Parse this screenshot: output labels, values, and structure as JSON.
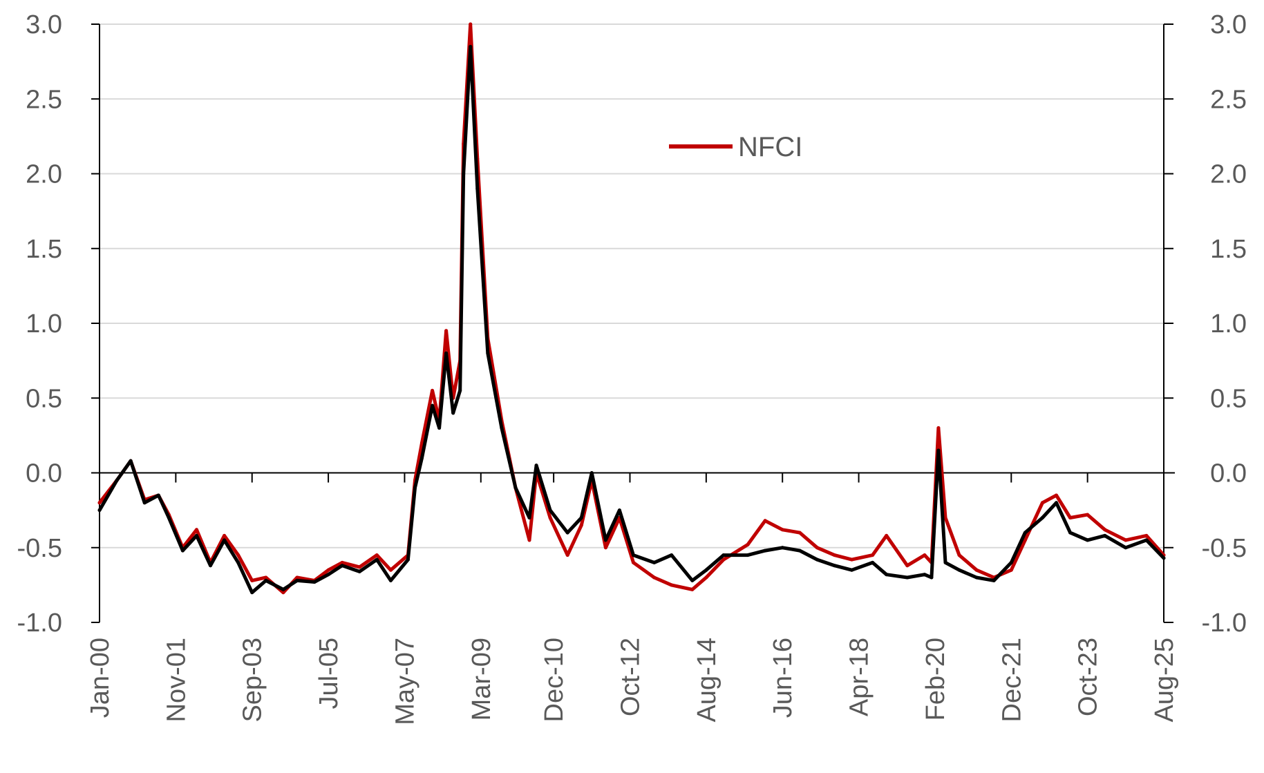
{
  "chart_data": {
    "type": "line",
    "title": "",
    "xlabel": "",
    "ylabel": "",
    "x_range": [
      "2000-01",
      "2025-08"
    ],
    "ylim": [
      -1.0,
      3.0
    ],
    "y_ticks": [
      "3.0",
      "2.5",
      "2.0",
      "1.5",
      "1.0",
      "0.5",
      "0.0",
      "-0.5",
      "-1.0"
    ],
    "y_tick_values": [
      3.0,
      2.5,
      2.0,
      1.5,
      1.0,
      0.5,
      0.0,
      -0.5,
      -1.0
    ],
    "secondary_y_ticks": [
      "3.0",
      "2.5",
      "2.0",
      "1.5",
      "1.0",
      "0.5",
      "0.0",
      "-0.5",
      "-1.0"
    ],
    "x_tick_labels": [
      "Jan-00",
      "Nov-01",
      "Sep-03",
      "Jul-05",
      "May-07",
      "Mar-09",
      "Dec-10",
      "Oct-12",
      "Aug-14",
      "Jun-16",
      "Apr-18",
      "Feb-20",
      "Dec-21",
      "Oct-23",
      "Aug-25"
    ],
    "x_tick_dates": [
      "2000-01",
      "2001-11",
      "2003-09",
      "2005-07",
      "2007-05",
      "2009-03",
      "2010-12",
      "2012-10",
      "2014-08",
      "2016-06",
      "2018-04",
      "2020-02",
      "2021-12",
      "2023-10",
      "2025-08"
    ],
    "grid": true,
    "legend_position": "top-center",
    "series": [
      {
        "name": "NFCI",
        "color": "#C00000",
        "points": [
          [
            "2000-01",
            -0.2
          ],
          [
            "2000-06",
            -0.05
          ],
          [
            "2000-10",
            0.08
          ],
          [
            "2001-02",
            -0.18
          ],
          [
            "2001-06",
            -0.15
          ],
          [
            "2001-09",
            -0.28
          ],
          [
            "2002-01",
            -0.5
          ],
          [
            "2002-05",
            -0.38
          ],
          [
            "2002-09",
            -0.6
          ],
          [
            "2003-01",
            -0.42
          ],
          [
            "2003-05",
            -0.55
          ],
          [
            "2003-09",
            -0.72
          ],
          [
            "2004-01",
            -0.7
          ],
          [
            "2004-06",
            -0.8
          ],
          [
            "2004-10",
            -0.7
          ],
          [
            "2005-03",
            -0.72
          ],
          [
            "2005-07",
            -0.65
          ],
          [
            "2005-11",
            -0.6
          ],
          [
            "2006-04",
            -0.63
          ],
          [
            "2006-09",
            -0.55
          ],
          [
            "2007-01",
            -0.65
          ],
          [
            "2007-06",
            -0.55
          ],
          [
            "2007-08",
            -0.05
          ],
          [
            "2007-10",
            0.2
          ],
          [
            "2008-01",
            0.55
          ],
          [
            "2008-03",
            0.35
          ],
          [
            "2008-05",
            0.95
          ],
          [
            "2008-07",
            0.5
          ],
          [
            "2008-09",
            0.75
          ],
          [
            "2008-10",
            2.2
          ],
          [
            "2008-12",
            3.0
          ],
          [
            "2009-02",
            2.1
          ],
          [
            "2009-05",
            0.9
          ],
          [
            "2009-09",
            0.35
          ],
          [
            "2010-01",
            -0.1
          ],
          [
            "2010-05",
            -0.45
          ],
          [
            "2010-07",
            0.0
          ],
          [
            "2010-11",
            -0.3
          ],
          [
            "2011-04",
            -0.55
          ],
          [
            "2011-08",
            -0.35
          ],
          [
            "2011-11",
            -0.05
          ],
          [
            "2012-03",
            -0.5
          ],
          [
            "2012-07",
            -0.3
          ],
          [
            "2012-11",
            -0.6
          ],
          [
            "2013-05",
            -0.7
          ],
          [
            "2013-10",
            -0.75
          ],
          [
            "2014-04",
            -0.78
          ],
          [
            "2014-08",
            -0.7
          ],
          [
            "2015-01",
            -0.58
          ],
          [
            "2015-08",
            -0.48
          ],
          [
            "2016-01",
            -0.32
          ],
          [
            "2016-06",
            -0.38
          ],
          [
            "2016-11",
            -0.4
          ],
          [
            "2017-04",
            -0.5
          ],
          [
            "2017-09",
            -0.55
          ],
          [
            "2018-02",
            -0.58
          ],
          [
            "2018-08",
            -0.55
          ],
          [
            "2018-12",
            -0.42
          ],
          [
            "2019-06",
            -0.62
          ],
          [
            "2019-11",
            -0.55
          ],
          [
            "2020-01",
            -0.6
          ],
          [
            "2020-03",
            0.3
          ],
          [
            "2020-05",
            -0.3
          ],
          [
            "2020-09",
            -0.55
          ],
          [
            "2021-02",
            -0.65
          ],
          [
            "2021-07",
            -0.7
          ],
          [
            "2021-12",
            -0.65
          ],
          [
            "2022-04",
            -0.45
          ],
          [
            "2022-09",
            -0.2
          ],
          [
            "2023-01",
            -0.15
          ],
          [
            "2023-05",
            -0.3
          ],
          [
            "2023-10",
            -0.28
          ],
          [
            "2024-03",
            -0.38
          ],
          [
            "2024-09",
            -0.45
          ],
          [
            "2025-03",
            -0.42
          ],
          [
            "2025-08",
            -0.55
          ]
        ]
      },
      {
        "color": "#000000",
        "points": [
          [
            "2000-01",
            -0.25
          ],
          [
            "2000-06",
            -0.05
          ],
          [
            "2000-10",
            0.08
          ],
          [
            "2001-02",
            -0.2
          ],
          [
            "2001-06",
            -0.15
          ],
          [
            "2001-09",
            -0.3
          ],
          [
            "2002-01",
            -0.52
          ],
          [
            "2002-05",
            -0.42
          ],
          [
            "2002-09",
            -0.62
          ],
          [
            "2003-01",
            -0.45
          ],
          [
            "2003-05",
            -0.6
          ],
          [
            "2003-09",
            -0.8
          ],
          [
            "2004-01",
            -0.72
          ],
          [
            "2004-06",
            -0.78
          ],
          [
            "2004-10",
            -0.72
          ],
          [
            "2005-03",
            -0.73
          ],
          [
            "2005-07",
            -0.68
          ],
          [
            "2005-11",
            -0.62
          ],
          [
            "2006-04",
            -0.66
          ],
          [
            "2006-09",
            -0.58
          ],
          [
            "2007-01",
            -0.72
          ],
          [
            "2007-06",
            -0.58
          ],
          [
            "2007-08",
            -0.1
          ],
          [
            "2007-10",
            0.1
          ],
          [
            "2008-01",
            0.45
          ],
          [
            "2008-03",
            0.3
          ],
          [
            "2008-05",
            0.8
          ],
          [
            "2008-07",
            0.4
          ],
          [
            "2008-09",
            0.55
          ],
          [
            "2008-10",
            2.0
          ],
          [
            "2008-12",
            2.85
          ],
          [
            "2009-02",
            1.9
          ],
          [
            "2009-05",
            0.8
          ],
          [
            "2009-09",
            0.3
          ],
          [
            "2010-01",
            -0.1
          ],
          [
            "2010-05",
            -0.3
          ],
          [
            "2010-07",
            0.05
          ],
          [
            "2010-11",
            -0.25
          ],
          [
            "2011-04",
            -0.4
          ],
          [
            "2011-08",
            -0.3
          ],
          [
            "2011-11",
            0.0
          ],
          [
            "2012-03",
            -0.45
          ],
          [
            "2012-07",
            -0.25
          ],
          [
            "2012-11",
            -0.55
          ],
          [
            "2013-05",
            -0.6
          ],
          [
            "2013-10",
            -0.55
          ],
          [
            "2014-04",
            -0.72
          ],
          [
            "2014-08",
            -0.65
          ],
          [
            "2015-01",
            -0.55
          ],
          [
            "2015-08",
            -0.55
          ],
          [
            "2016-01",
            -0.52
          ],
          [
            "2016-06",
            -0.5
          ],
          [
            "2016-11",
            -0.52
          ],
          [
            "2017-04",
            -0.58
          ],
          [
            "2017-09",
            -0.62
          ],
          [
            "2018-02",
            -0.65
          ],
          [
            "2018-08",
            -0.6
          ],
          [
            "2018-12",
            -0.68
          ],
          [
            "2019-06",
            -0.7
          ],
          [
            "2019-11",
            -0.68
          ],
          [
            "2020-01",
            -0.7
          ],
          [
            "2020-03",
            0.15
          ],
          [
            "2020-05",
            -0.6
          ],
          [
            "2020-09",
            -0.65
          ],
          [
            "2021-02",
            -0.7
          ],
          [
            "2021-07",
            -0.72
          ],
          [
            "2021-12",
            -0.6
          ],
          [
            "2022-04",
            -0.4
          ],
          [
            "2022-09",
            -0.3
          ],
          [
            "2023-01",
            -0.2
          ],
          [
            "2023-05",
            -0.4
          ],
          [
            "2023-10",
            -0.45
          ],
          [
            "2024-03",
            -0.42
          ],
          [
            "2024-09",
            -0.5
          ],
          [
            "2025-03",
            -0.45
          ],
          [
            "2025-08",
            -0.57
          ]
        ]
      }
    ]
  }
}
